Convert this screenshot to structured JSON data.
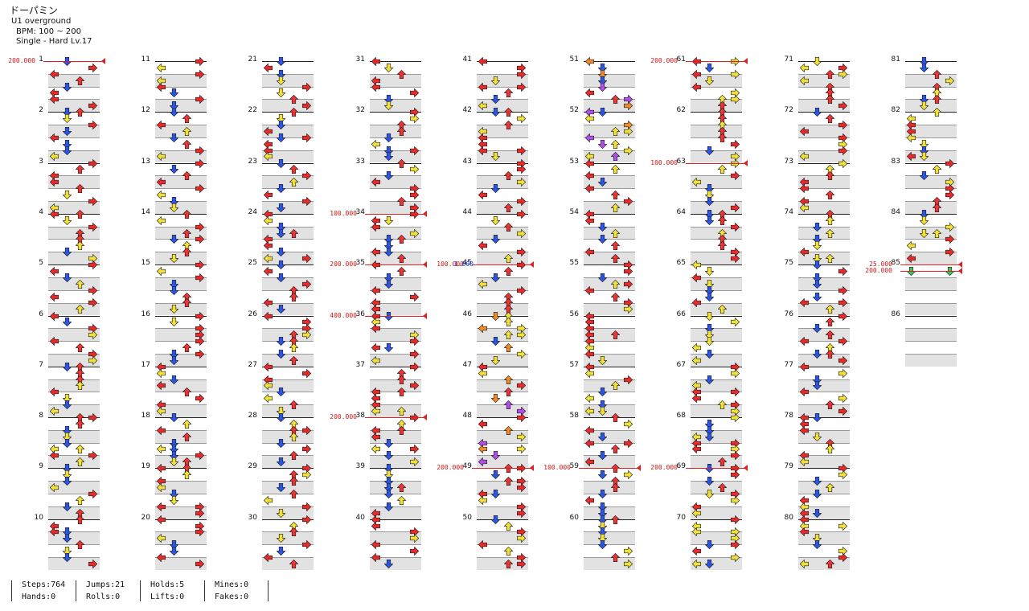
{
  "song": {
    "title": "ドーパミン",
    "artist": "U1 overground",
    "bpm": "BPM: 100 ~ 200",
    "chart": "Single - Hard  Lv.17"
  },
  "colors": {
    "left": "#e82a2a",
    "down": "#2b55e6",
    "up": "#ec3434",
    "right": "#e82a2a",
    "yellow": "#f2e03a",
    "purple": "#b24ee8",
    "orange": "#f08a2a",
    "green": "#48c060"
  },
  "stats": [
    {
      "a": "Steps:764",
      "b": "Hands:0"
    },
    {
      "a": "Jumps:21",
      "b": "Rolls:0"
    },
    {
      "a": "Holds:5",
      "b": "Lifts:0"
    },
    {
      "a": "Mines:0",
      "b": "Fakes:0"
    }
  ],
  "columns": [
    {
      "measures": [
        1,
        2,
        3,
        4,
        5,
        6,
        7,
        8,
        9,
        10
      ]
    },
    {
      "measures": [
        11,
        12,
        13,
        14,
        15,
        16,
        17,
        18,
        19,
        20
      ]
    },
    {
      "measures": [
        21,
        22,
        23,
        24,
        25,
        26,
        27,
        28,
        29,
        30
      ]
    },
    {
      "measures": [
        31,
        32,
        33,
        34,
        35,
        36,
        37,
        38,
        39,
        40
      ]
    },
    {
      "measures": [
        41,
        42,
        43,
        44,
        45,
        46,
        47,
        48,
        49,
        50
      ]
    },
    {
      "measures": [
        51,
        52,
        53,
        54,
        55,
        56,
        57,
        58,
        59,
        60
      ]
    },
    {
      "measures": [
        61,
        62,
        63,
        64,
        65,
        66,
        67,
        68,
        69,
        70
      ]
    },
    {
      "measures": [
        71,
        72,
        73,
        74,
        75,
        76,
        77,
        78,
        79,
        80
      ]
    },
    {
      "measures": [
        81,
        82,
        83,
        84,
        85,
        86
      ]
    }
  ],
  "bpm_changes": [
    {
      "col": 0,
      "measure": 1,
      "beat": 0,
      "label": "200.000"
    },
    {
      "col": 3,
      "measure": 34,
      "beat": 0,
      "label": "100.000"
    },
    {
      "col": 3,
      "measure": 35,
      "beat": 0,
      "label": "200.000"
    },
    {
      "col": 3,
      "measure": 36,
      "beat": 0,
      "label": "400.000"
    },
    {
      "col": 3,
      "measure": 38,
      "beat": 0,
      "label": "200.000"
    },
    {
      "col": 4,
      "measure": 45,
      "beat": 0,
      "label": "100.000"
    },
    {
      "col": 4,
      "measure": 49,
      "beat": 0,
      "label": "200.000"
    },
    {
      "col": 5,
      "measure": 59,
      "beat": 0,
      "label": "100.000"
    },
    {
      "col": 6,
      "measure": 61,
      "beat": 0,
      "label": "200.000"
    },
    {
      "col": 6,
      "measure": 63,
      "beat": 0,
      "label": "100.000"
    },
    {
      "col": 6,
      "measure": 69,
      "beat": 0,
      "label": "200.000"
    },
    {
      "col": 8,
      "measure": 85,
      "beat": 0,
      "label": "25.000"
    },
    {
      "col": 8,
      "measure": 85,
      "beat": 0.5,
      "label": "200.000"
    }
  ],
  "stop_changes": [
    {
      "col": 4,
      "measure": 45,
      "beat": 0,
      "label": "1.000"
    }
  ]
}
